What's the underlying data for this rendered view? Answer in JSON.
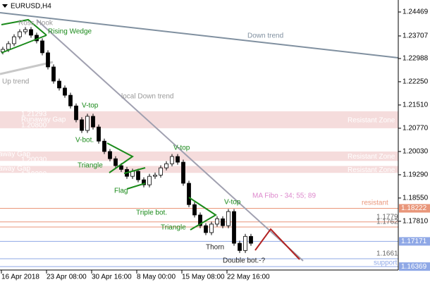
{
  "chart_data": {
    "type": "candlestick",
    "title": "EURUSD,H4",
    "categories": [
      "16 Apr 2018",
      null,
      null,
      null,
      null,
      null,
      null,
      null,
      "23 Apr 08:00",
      null,
      null,
      null,
      null,
      null,
      null,
      null,
      "30 Apr 16:00",
      null,
      null,
      null,
      null,
      null,
      null,
      null,
      "8 May 00:00",
      null,
      null,
      null,
      null,
      null,
      null,
      null,
      "15 May 08:00",
      null,
      null,
      null,
      null,
      null,
      null,
      null,
      "22 May 16:00",
      null,
      null,
      null,
      null
    ],
    "open": [
      1.232,
      1.2328,
      1.2346,
      1.2368,
      1.2384,
      1.2391,
      1.2373,
      1.2355,
      1.2317,
      1.2272,
      1.2227,
      1.2205,
      1.2182,
      1.2148,
      1.2104,
      1.207,
      1.2115,
      1.2081,
      1.2036,
      1.2003,
      1.198,
      1.1958,
      1.1946,
      1.1924,
      1.194,
      1.1913,
      1.1897,
      1.1924,
      1.1928,
      1.1951,
      1.1964,
      1.1987,
      1.1969,
      1.1902,
      1.1834,
      1.1801,
      1.1767,
      1.1745,
      1.1772,
      1.1789,
      1.1767,
      1.1812,
      1.1711,
      1.1688,
      1.1733
    ],
    "high": [
      1.2336,
      1.2354,
      1.2376,
      1.2392,
      1.2399,
      1.2399,
      1.2381,
      1.2363,
      1.2325,
      1.228,
      1.2235,
      1.2213,
      1.219,
      1.2156,
      1.2112,
      1.2123,
      1.2123,
      1.2089,
      1.2044,
      1.2011,
      1.1988,
      1.1966,
      1.1954,
      1.1948,
      1.1948,
      1.1921,
      1.1932,
      1.1936,
      1.1959,
      1.1972,
      1.1995,
      1.1995,
      1.1977,
      1.191,
      1.1842,
      1.1809,
      1.1775,
      1.178,
      1.1797,
      1.1797,
      1.182,
      1.182,
      1.1719,
      1.1741,
      1.1741
    ],
    "low": [
      1.2312,
      1.232,
      1.2338,
      1.236,
      1.2376,
      1.2365,
      1.2347,
      1.2309,
      1.2264,
      1.2219,
      1.2197,
      1.2174,
      1.214,
      1.2096,
      1.2062,
      1.2062,
      1.2073,
      1.2028,
      1.1995,
      1.1972,
      1.195,
      1.1938,
      1.1916,
      1.1916,
      1.1905,
      1.1889,
      1.1889,
      1.1916,
      1.192,
      1.1943,
      1.1956,
      1.1961,
      1.1894,
      1.1826,
      1.1793,
      1.1759,
      1.1737,
      1.1737,
      1.1764,
      1.1759,
      1.1759,
      1.1703,
      1.168,
      1.168,
      1.1703
    ],
    "close": [
      1.2328,
      1.2346,
      1.2368,
      1.2384,
      1.2391,
      1.2373,
      1.2355,
      1.2317,
      1.2272,
      1.2227,
      1.2205,
      1.2182,
      1.2148,
      1.2104,
      1.207,
      1.2115,
      1.2081,
      1.2036,
      1.2003,
      1.198,
      1.1958,
      1.1946,
      1.1924,
      1.194,
      1.1913,
      1.1897,
      1.1924,
      1.1928,
      1.1951,
      1.1964,
      1.1987,
      1.1969,
      1.1902,
      1.1834,
      1.1801,
      1.1767,
      1.1745,
      1.1772,
      1.1789,
      1.1767,
      1.1812,
      1.1711,
      1.1688,
      1.1733,
      1.1711
    ],
    "ylim": [
      1.1626,
      1.2485
    ],
    "yticks": [
      1.24469,
      1.23707,
      1.22988,
      {
        "value": 1.2225,
        "label": "1.22250"
      },
      {
        "value": 1.2151,
        "label": "1.21510"
      },
      {
        "value": 1.2077,
        "label": "1.20770"
      },
      {
        "value": 1.2003,
        "label": "1.20030"
      },
      {
        "value": 1.1929,
        "label": "1.19290"
      },
      {
        "value": 1.1855,
        "label": "1.18550"
      },
      {
        "value": 1.1781,
        "label": "1.17810"
      }
    ],
    "levels": [
      {
        "value": 1.18222,
        "color": "#e9967a",
        "label_position": "axis"
      },
      {
        "value": 1.17792,
        "color": "#e9967a",
        "label_position": "plot"
      },
      {
        "value": 1.17628,
        "color": "#e9967a",
        "label_position": "plot"
      },
      {
        "value": 1.17171,
        "color": "#8fa8e6",
        "label_position": "axis"
      },
      {
        "value": 1.16618,
        "color": "#8fa8e6",
        "label_position": "plot"
      },
      {
        "value": 1.16369,
        "color": "#8fa8e6",
        "label_position": "axis"
      }
    ],
    "zones": [
      {
        "from": 1.2077,
        "to": 1.2131,
        "label": "Resistant Zone",
        "notes": [
          "1.21293",
          "Runaway Gap",
          "1.20800"
        ]
      },
      {
        "from": 1.1973,
        "to": 1.2003,
        "label": "Resistant Zone",
        "notes": [
          "away Gap",
          "1.20030"
        ]
      },
      {
        "from": 1.1935,
        "to": 1.1957,
        "label": "Resistant Zone",
        "notes": [
          "away Gap",
          "1.19390",
          "1.19343"
        ]
      }
    ],
    "annotations": [
      "Ross Hook",
      "Rising Wedge",
      "Down trend",
      "Up trend",
      "local Down trend",
      "V-top",
      "V-bot.",
      "Triangle",
      "Flag",
      "V-top",
      "Triple bot.",
      "Triangle",
      "V-top",
      "Thorn",
      "Double bot.-?",
      "MA Fibo - 34; 55; 89",
      "resistant",
      "support"
    ]
  }
}
